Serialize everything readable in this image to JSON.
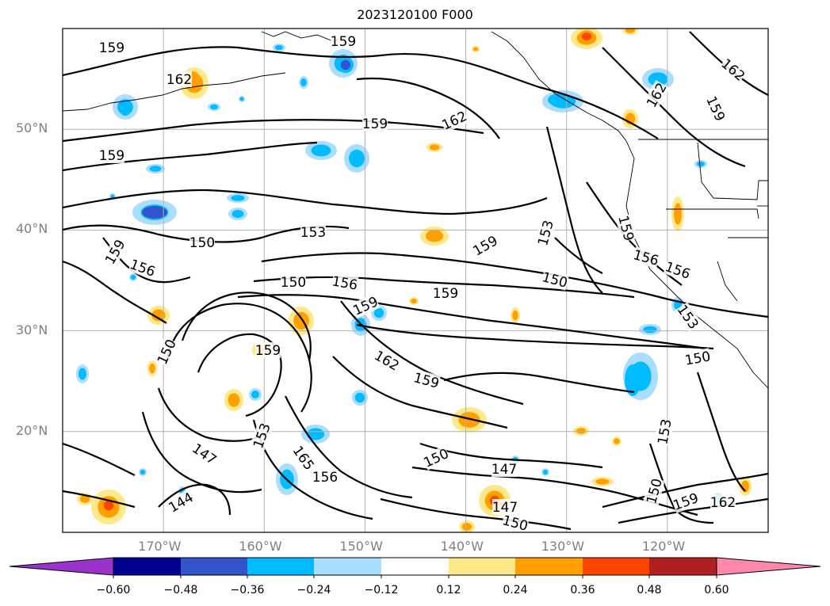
{
  "title": "2023120100 F000",
  "map": {
    "lon_range": [
      -180,
      -110
    ],
    "lat_range": [
      10,
      60
    ],
    "lat_labels": [
      "50°N",
      "40°N",
      "30°N",
      "20°N"
    ],
    "lon_labels": [
      "170°W",
      "160°W",
      "150°W",
      "140°W",
      "130°W",
      "120°W"
    ],
    "grid": true,
    "contour_labels": [
      "159",
      "159",
      "162",
      "162",
      "159",
      "162",
      "159",
      "162",
      "159",
      "153",
      "159",
      "153",
      "150",
      "159",
      "156",
      "156",
      "150",
      "156",
      "150",
      "159",
      "156",
      "159",
      "153",
      "159",
      "150",
      "159",
      "162",
      "159",
      "150",
      "153",
      "165",
      "147",
      "156",
      "150",
      "147",
      "144",
      "147",
      "150",
      "150",
      "153",
      "159",
      "162"
    ]
  },
  "colorbar": {
    "ticks": [
      "−0.60",
      "−0.48",
      "−0.36",
      "−0.24",
      "−0.12",
      "0.12",
      "0.24",
      "0.36",
      "0.48",
      "0.60"
    ],
    "colors": [
      "#9933cc",
      "#000090",
      "#3355cc",
      "#00bbff",
      "#aaddff",
      "#ffffff",
      "#ffe888",
      "#ffa000",
      "#ff4400",
      "#b02020",
      "#ff88aa"
    ]
  }
}
